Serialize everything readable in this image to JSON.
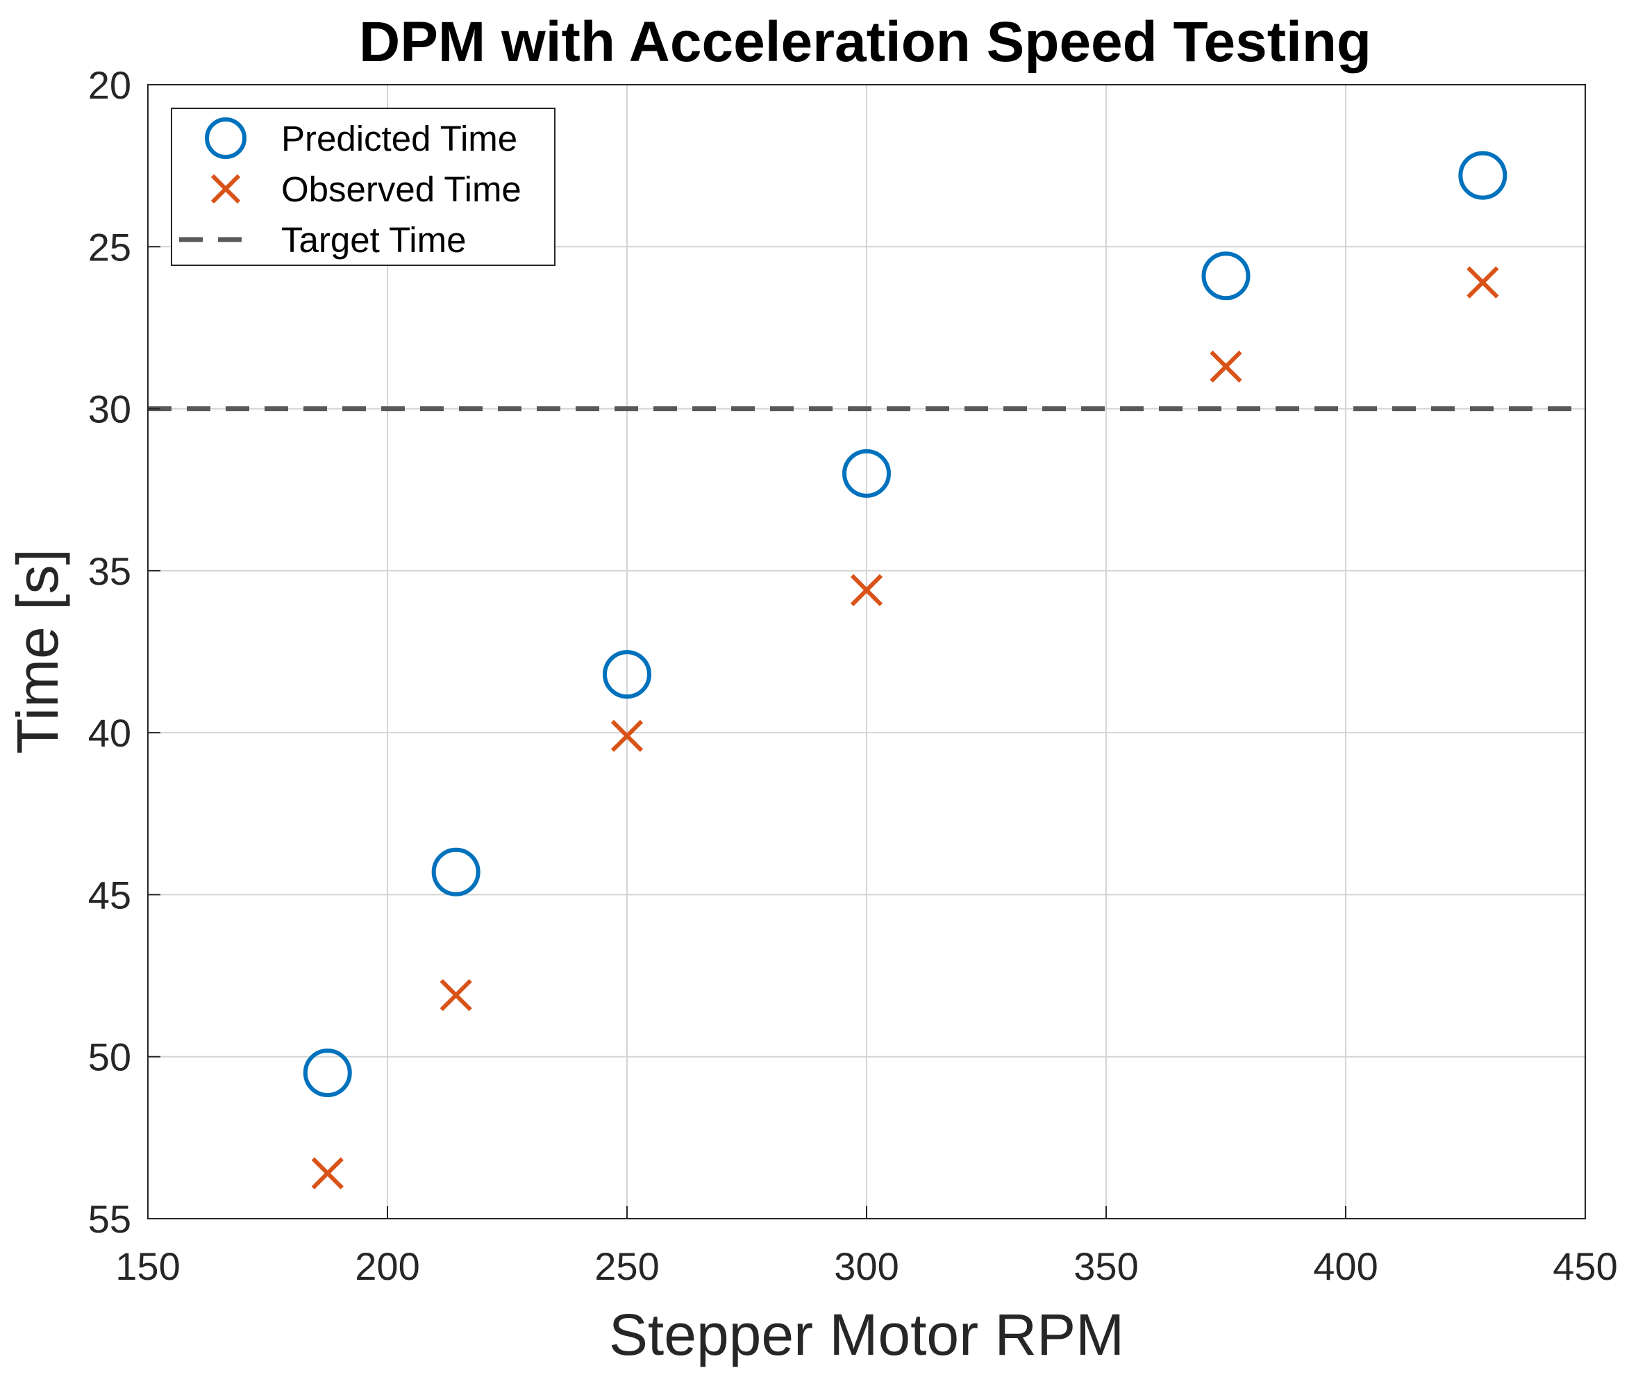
{
  "chart_data": {
    "type": "scatter",
    "title": "DPM with Acceleration Speed Testing",
    "xlabel": "Stepper Motor RPM",
    "ylabel": "Time [s]",
    "xlim": [
      150,
      450
    ],
    "ylim": [
      20,
      55
    ],
    "y_reversed": true,
    "grid": true,
    "xticks": [
      150,
      200,
      250,
      300,
      350,
      400,
      450
    ],
    "yticks": [
      20,
      25,
      30,
      35,
      40,
      45,
      50,
      55
    ],
    "legend_position": "top-left",
    "series": [
      {
        "name": "Predicted Time",
        "marker": "circle",
        "color": "#0072BD",
        "x": [
          187.5,
          214.3,
          250,
          300,
          375,
          428.6
        ],
        "y": [
          50.5,
          44.3,
          38.2,
          32.0,
          25.9,
          22.8
        ]
      },
      {
        "name": "Observed Time",
        "marker": "x",
        "color": "#D95319",
        "x": [
          187.5,
          214.3,
          250,
          300,
          375,
          428.6
        ],
        "y": [
          53.6,
          48.1,
          40.1,
          35.6,
          28.7,
          26.1
        ]
      }
    ],
    "reference_lines": [
      {
        "name": "Target Time",
        "orientation": "horizontal",
        "value": 30,
        "style": "dashed",
        "color": "#595959"
      }
    ]
  }
}
